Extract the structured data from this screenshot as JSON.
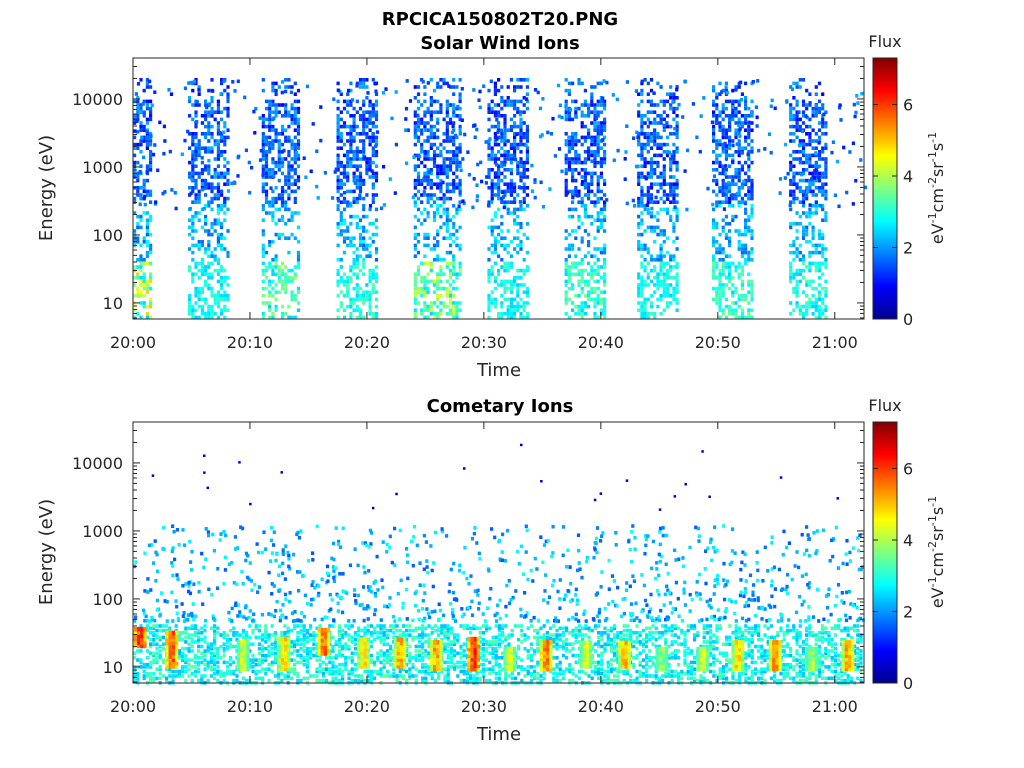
{
  "figure": {
    "title": "RPCICA150802T20.PNG"
  },
  "colorbar": {
    "title": "Flux",
    "label_html": [
      "eV",
      "-1",
      "cm",
      "-2",
      "sr",
      "-1",
      "s",
      "-1"
    ],
    "ticks": [
      "0",
      "2",
      "4",
      "6"
    ],
    "range": [
      0,
      7.3
    ]
  },
  "chart_data": [
    {
      "type": "heatmap",
      "title": "Solar Wind Ions",
      "xlabel": "Time",
      "ylabel": "Energy (eV)",
      "x_ticks": [
        "20:00",
        "20:10",
        "20:20",
        "20:30",
        "20:40",
        "20:50",
        "21:00"
      ],
      "x_tick_minutes": [
        0,
        10,
        20,
        30,
        40,
        50,
        60
      ],
      "xlim_minutes": [
        0,
        62.5
      ],
      "y_scale": "log",
      "y_ticks": [
        "10",
        "100",
        "1000",
        "10000"
      ],
      "ylim": [
        5.8,
        40000
      ],
      "colormap": "jet",
      "flux_range": [
        0,
        7.3
      ],
      "bursts": [
        {
          "start_min": 0.0,
          "end_min": 1.5,
          "low_energy_flux": 5.0
        },
        {
          "start_min": 4.7,
          "end_min": 8.1,
          "low_energy_flux": 3.2
        },
        {
          "start_min": 11.0,
          "end_min": 14.1,
          "low_energy_flux": 3.8
        },
        {
          "start_min": 17.4,
          "end_min": 20.7,
          "low_energy_flux": 3.4
        },
        {
          "start_min": 24.0,
          "end_min": 28.1,
          "low_energy_flux": 4.4
        },
        {
          "start_min": 30.3,
          "end_min": 33.6,
          "low_energy_flux": 3.2
        },
        {
          "start_min": 36.9,
          "end_min": 40.3,
          "low_energy_flux": 3.6
        },
        {
          "start_min": 43.1,
          "end_min": 46.6,
          "low_energy_flux": 3.2
        },
        {
          "start_min": 49.5,
          "end_min": 53.0,
          "low_energy_flux": 3.6
        },
        {
          "start_min": 56.1,
          "end_min": 59.3,
          "low_energy_flux": 3.4
        }
      ]
    },
    {
      "type": "heatmap",
      "title": "Cometary Ions",
      "xlabel": "Time",
      "ylabel": "Energy (eV)",
      "x_ticks": [
        "20:00",
        "20:10",
        "20:20",
        "20:30",
        "20:40",
        "20:50",
        "21:00"
      ],
      "x_tick_minutes": [
        0,
        10,
        20,
        30,
        40,
        50,
        60
      ],
      "xlim_minutes": [
        0,
        62.5
      ],
      "y_scale": "log",
      "y_ticks": [
        "10",
        "100",
        "1000",
        "10000"
      ],
      "ylim": [
        5.8,
        40000
      ],
      "colormap": "jet",
      "flux_range": [
        0,
        7.3
      ],
      "hot_spots": [
        {
          "minute": 0.5,
          "energy_lo": 22,
          "energy_hi": 40,
          "peak_flux": 6.8
        },
        {
          "minute": 3.2,
          "energy_lo": 11,
          "energy_hi": 35,
          "peak_flux": 6.5
        },
        {
          "minute": 9.3,
          "energy_lo": 10,
          "energy_hi": 25,
          "peak_flux": 5.0
        },
        {
          "minute": 12.8,
          "energy_lo": 10,
          "energy_hi": 28,
          "peak_flux": 5.6
        },
        {
          "minute": 16.2,
          "energy_lo": 17,
          "energy_hi": 38,
          "peak_flux": 6.4
        },
        {
          "minute": 19.6,
          "energy_lo": 11,
          "energy_hi": 28,
          "peak_flux": 5.5
        },
        {
          "minute": 22.7,
          "energy_lo": 11,
          "energy_hi": 30,
          "peak_flux": 5.9
        },
        {
          "minute": 25.8,
          "energy_lo": 10,
          "energy_hi": 25,
          "peak_flux": 6.1
        },
        {
          "minute": 29.0,
          "energy_lo": 10,
          "energy_hi": 28,
          "peak_flux": 6.8
        },
        {
          "minute": 32.1,
          "energy_lo": 10,
          "energy_hi": 22,
          "peak_flux": 5.2
        },
        {
          "minute": 35.2,
          "energy_lo": 10,
          "energy_hi": 25,
          "peak_flux": 6.3
        },
        {
          "minute": 38.6,
          "energy_lo": 11,
          "energy_hi": 25,
          "peak_flux": 5.1
        },
        {
          "minute": 41.9,
          "energy_lo": 11,
          "energy_hi": 25,
          "peak_flux": 5.9
        },
        {
          "minute": 45.1,
          "energy_lo": 10,
          "energy_hi": 20,
          "peak_flux": 4.6
        },
        {
          "minute": 48.6,
          "energy_lo": 10,
          "energy_hi": 22,
          "peak_flux": 5.2
        },
        {
          "minute": 51.6,
          "energy_lo": 10,
          "energy_hi": 25,
          "peak_flux": 5.6
        },
        {
          "minute": 54.8,
          "energy_lo": 10,
          "energy_hi": 25,
          "peak_flux": 6.1
        },
        {
          "minute": 57.9,
          "energy_lo": 10,
          "energy_hi": 22,
          "peak_flux": 4.8
        },
        {
          "minute": 61.0,
          "energy_lo": 10,
          "energy_hi": 25,
          "peak_flux": 6.0
        }
      ]
    }
  ]
}
